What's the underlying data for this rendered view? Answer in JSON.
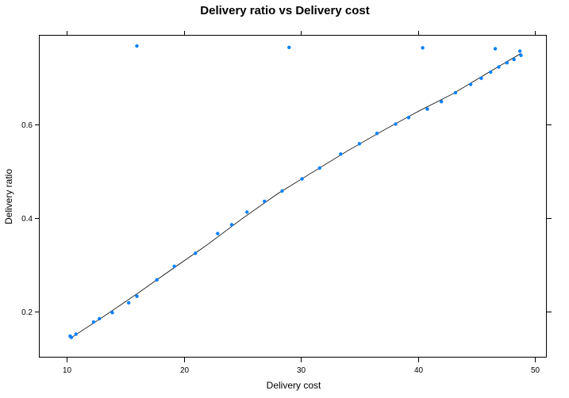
{
  "chart_data": {
    "type": "scatter",
    "title": "Delivery ratio vs Delivery cost",
    "xlabel": "Delivery cost",
    "ylabel": "Delivery ratio",
    "xlim": [
      7.7,
      51.0
    ],
    "ylim": [
      0.102,
      0.79
    ],
    "x_ticks": [
      10,
      20,
      30,
      40,
      50
    ],
    "y_ticks": [
      0.2,
      0.4,
      0.6
    ],
    "x_tick_labels": [
      "10",
      "20",
      "30",
      "40",
      "50"
    ],
    "y_tick_labels": [
      "0.2",
      "0.4",
      "0.6"
    ],
    "grid": false,
    "legend": "none",
    "colors": {
      "points": "#0080ff",
      "line": "#000000",
      "frame": "#000000"
    },
    "series": [
      {
        "kind": "points",
        "x": [
          10.3,
          10.4,
          10.8,
          12.3,
          12.8,
          13.9,
          15.3,
          16.0,
          17.7,
          19.2,
          21.0,
          22.9,
          24.1,
          25.4,
          26.9,
          28.4,
          30.1,
          31.6,
          33.4,
          35.0,
          36.5,
          38.1,
          39.2,
          40.8,
          42.0,
          43.2,
          44.5,
          45.4,
          46.2,
          46.9,
          47.6,
          48.2,
          48.8,
          16.0,
          29.0,
          40.4,
          46.6,
          48.7
        ],
        "y": [
          0.148,
          0.145,
          0.152,
          0.178,
          0.185,
          0.198,
          0.219,
          0.233,
          0.268,
          0.297,
          0.325,
          0.367,
          0.386,
          0.413,
          0.436,
          0.458,
          0.484,
          0.507,
          0.537,
          0.559,
          0.581,
          0.601,
          0.615,
          0.633,
          0.649,
          0.668,
          0.686,
          0.699,
          0.712,
          0.723,
          0.732,
          0.739,
          0.748,
          0.768,
          0.765,
          0.764,
          0.762,
          0.757
        ]
      },
      {
        "kind": "fit-line",
        "x": [
          10.3,
          13.0,
          16.0,
          19.0,
          22.0,
          25.0,
          28.0,
          31.0,
          34.0,
          37.0,
          40.0,
          43.0,
          46.0,
          48.8
        ],
        "y": [
          0.143,
          0.187,
          0.238,
          0.291,
          0.343,
          0.399,
          0.452,
          0.498,
          0.544,
          0.587,
          0.628,
          0.666,
          0.711,
          0.752
        ]
      }
    ]
  }
}
